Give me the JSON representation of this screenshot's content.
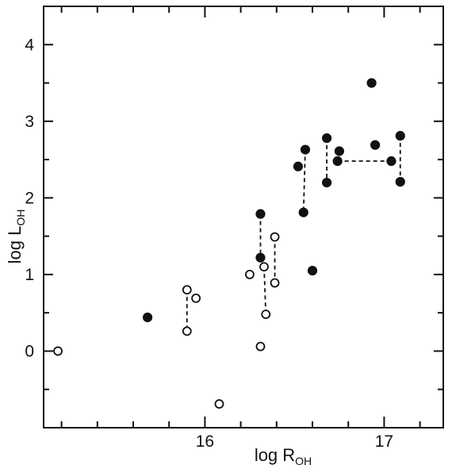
{
  "chart_data": {
    "type": "scatter",
    "title": "",
    "xlabel": {
      "main": "log R",
      "sub": "OH"
    },
    "ylabel": {
      "main": "log L",
      "sub": "OH"
    },
    "xlim": [
      15.1,
      17.33
    ],
    "ylim": [
      -1.0,
      4.5
    ],
    "x_major_ticks": [
      16,
      17
    ],
    "x_tick_labels": [
      "16",
      "17"
    ],
    "x_minor_ticks": [
      15.2,
      15.4,
      15.6,
      15.8,
      16.2,
      16.4,
      16.6,
      16.8,
      17.2
    ],
    "y_major_ticks": [
      0,
      1,
      2,
      3,
      4
    ],
    "y_tick_labels": [
      "0",
      "1",
      "2",
      "3",
      "4"
    ],
    "y_minor_ticks": [
      -0.5,
      0.5,
      1.5,
      2.5,
      3.5
    ],
    "grid": false,
    "series": [
      {
        "marker": "filled-circle",
        "points": [
          {
            "x": 15.68,
            "y": 0.44
          },
          {
            "x": 16.31,
            "y": 1.79
          },
          {
            "x": 16.31,
            "y": 1.22
          },
          {
            "x": 16.52,
            "y": 2.41
          },
          {
            "x": 16.56,
            "y": 2.63
          },
          {
            "x": 16.55,
            "y": 1.81
          },
          {
            "x": 16.6,
            "y": 1.05
          },
          {
            "x": 16.68,
            "y": 2.78
          },
          {
            "x": 16.68,
            "y": 2.2
          },
          {
            "x": 16.75,
            "y": 2.61
          },
          {
            "x": 16.74,
            "y": 2.48
          },
          {
            "x": 16.93,
            "y": 3.5
          },
          {
            "x": 16.95,
            "y": 2.69
          },
          {
            "x": 17.04,
            "y": 2.48
          },
          {
            "x": 17.09,
            "y": 2.81
          },
          {
            "x": 17.09,
            "y": 2.21
          }
        ]
      },
      {
        "marker": "open-circle",
        "points": [
          {
            "x": 15.18,
            "y": 0.0
          },
          {
            "x": 15.9,
            "y": 0.8
          },
          {
            "x": 15.95,
            "y": 0.69
          },
          {
            "x": 15.9,
            "y": 0.26
          },
          {
            "x": 16.08,
            "y": -0.69
          },
          {
            "x": 16.25,
            "y": 1.0
          },
          {
            "x": 16.31,
            "y": 0.06
          },
          {
            "x": 16.33,
            "y": 1.1
          },
          {
            "x": 16.34,
            "y": 0.48
          },
          {
            "x": 16.39,
            "y": 1.49
          },
          {
            "x": 16.39,
            "y": 0.89
          }
        ]
      }
    ],
    "dashed_links": [
      [
        [
          15.9,
          0.8
        ],
        [
          15.9,
          0.26
        ]
      ],
      [
        [
          16.31,
          1.79
        ],
        [
          16.31,
          1.22
        ]
      ],
      [
        [
          16.33,
          1.1
        ],
        [
          16.34,
          0.48
        ]
      ],
      [
        [
          16.39,
          1.49
        ],
        [
          16.39,
          0.89
        ]
      ],
      [
        [
          16.56,
          2.63
        ],
        [
          16.55,
          1.81
        ]
      ],
      [
        [
          16.68,
          2.78
        ],
        [
          16.68,
          2.2
        ]
      ],
      [
        [
          16.74,
          2.48
        ],
        [
          17.04,
          2.48
        ]
      ],
      [
        [
          17.09,
          2.81
        ],
        [
          17.09,
          2.21
        ]
      ]
    ]
  }
}
